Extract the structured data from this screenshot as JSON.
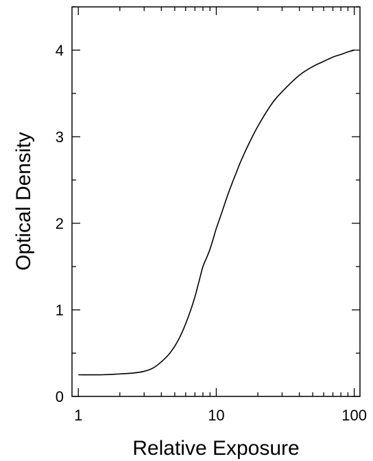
{
  "chart_data": {
    "type": "line",
    "xlabel": "Relative Exposure",
    "ylabel": "Optical Density",
    "x_scale": "log",
    "xlim": [
      0.9,
      110
    ],
    "ylim": [
      0,
      4.5
    ],
    "grid": false,
    "legend": "none",
    "x_ticks": [
      {
        "value": 1,
        "label": "1"
      },
      {
        "value": 10,
        "label": "10"
      },
      {
        "value": 100,
        "label": "100"
      }
    ],
    "y_ticks": [
      {
        "value": 0,
        "label": "0"
      },
      {
        "value": 1,
        "label": "1"
      },
      {
        "value": 2,
        "label": "2"
      },
      {
        "value": 3,
        "label": "3"
      },
      {
        "value": 4,
        "label": "4"
      }
    ],
    "series": [
      {
        "color": "#000000",
        "x": [
          1,
          1.5,
          2,
          2.5,
          3,
          3.5,
          4,
          4.5,
          5,
          5.5,
          6,
          6.5,
          7,
          7.5,
          8,
          8.5,
          9,
          9.5,
          10,
          11,
          12,
          13,
          14,
          15,
          17,
          20,
          25,
          30,
          40,
          50,
          60,
          70,
          80,
          90,
          100
        ],
        "y": [
          0.25,
          0.25,
          0.26,
          0.27,
          0.29,
          0.33,
          0.4,
          0.48,
          0.58,
          0.7,
          0.84,
          0.99,
          1.15,
          1.33,
          1.5,
          1.6,
          1.7,
          1.82,
          1.94,
          2.13,
          2.31,
          2.46,
          2.59,
          2.71,
          2.9,
          3.12,
          3.37,
          3.52,
          3.71,
          3.81,
          3.87,
          3.92,
          3.95,
          3.98,
          4.0
        ]
      }
    ]
  }
}
